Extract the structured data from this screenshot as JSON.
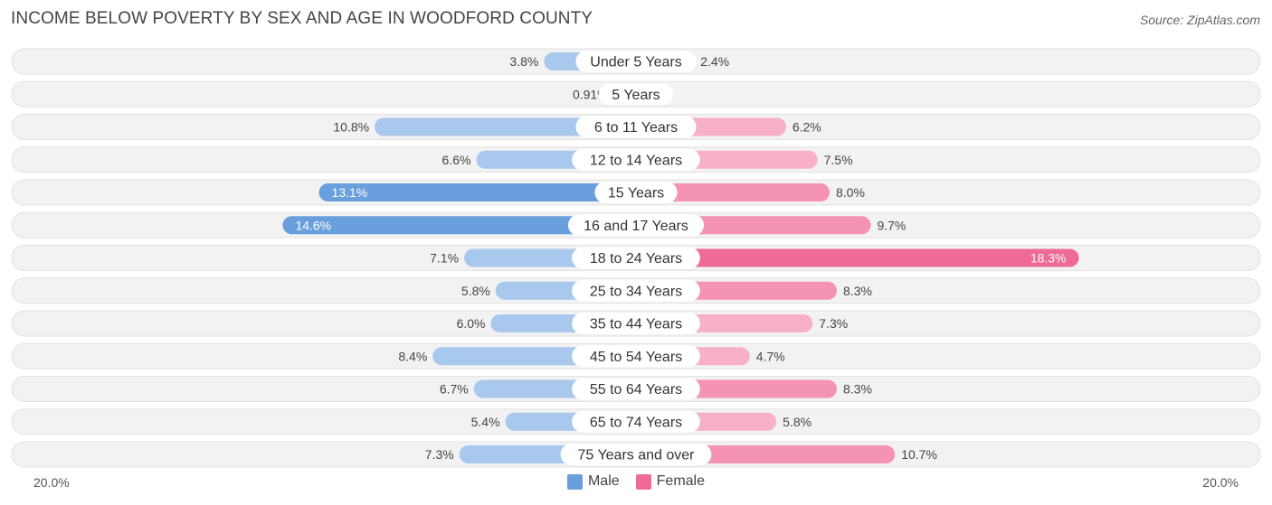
{
  "title": "INCOME BELOW POVERTY BY SEX AND AGE IN WOODFORD COUNTY",
  "source": "Source: ZipAtlas.com",
  "axis": {
    "left_label": "20.0%",
    "right_label": "20.0%"
  },
  "legend": [
    {
      "name": "Male",
      "color": "#6a9fde"
    },
    {
      "name": "Female",
      "color": "#f06a96"
    }
  ],
  "chart_data": {
    "type": "bar",
    "orientation": "horizontal-diverging",
    "xlim": [
      0,
      20.0
    ],
    "categories": [
      "Under 5 Years",
      "5 Years",
      "6 to 11 Years",
      "12 to 14 Years",
      "15 Years",
      "16 and 17 Years",
      "18 to 24 Years",
      "25 to 34 Years",
      "35 to 44 Years",
      "45 to 54 Years",
      "55 to 64 Years",
      "65 to 74 Years",
      "75 Years and over"
    ],
    "series": [
      {
        "name": "Male",
        "values": [
          3.8,
          0.91,
          10.8,
          6.6,
          13.1,
          14.6,
          7.1,
          5.8,
          6.0,
          8.4,
          6.7,
          5.4,
          7.3
        ],
        "labels": [
          "3.8%",
          "0.91%",
          "10.8%",
          "6.6%",
          "13.1%",
          "14.6%",
          "7.1%",
          "5.8%",
          "6.0%",
          "8.4%",
          "6.7%",
          "5.4%",
          "7.3%"
        ]
      },
      {
        "name": "Female",
        "values": [
          2.4,
          0.0,
          6.2,
          7.5,
          8.0,
          9.7,
          18.3,
          8.3,
          7.3,
          4.7,
          8.3,
          5.8,
          10.7
        ],
        "labels": [
          "2.4%",
          "0.0%",
          "6.2%",
          "7.5%",
          "8.0%",
          "9.7%",
          "18.3%",
          "8.3%",
          "7.3%",
          "4.7%",
          "8.3%",
          "5.8%",
          "10.7%"
        ]
      }
    ],
    "colors": {
      "male_light": "#a9c8ee",
      "male_strong": "#6a9fde",
      "female_light": "#f7b0c7",
      "female_strong": "#f06a96"
    }
  }
}
